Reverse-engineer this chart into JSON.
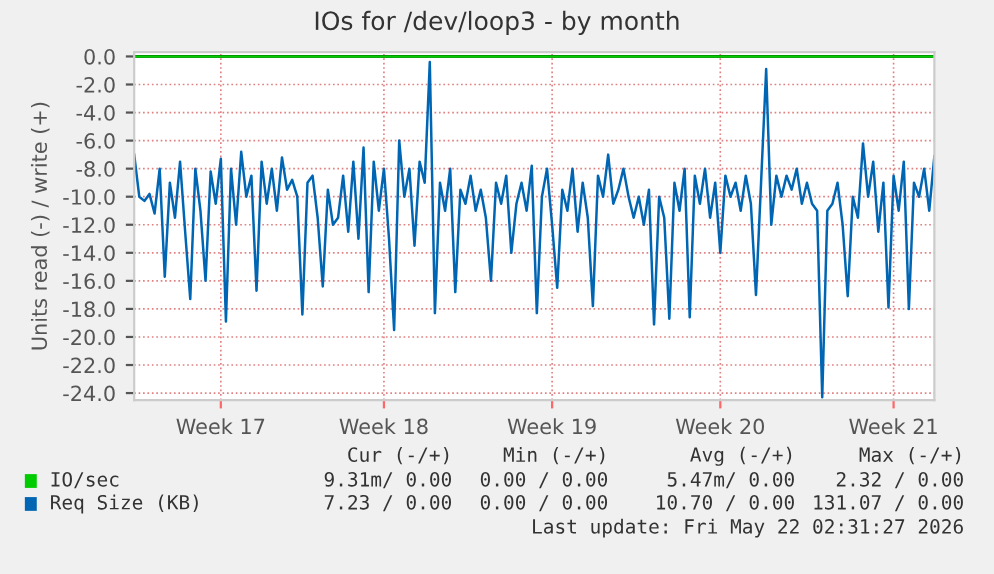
{
  "chart_data": {
    "type": "line",
    "title": "IOs for /dev/loop3 - by month",
    "ylabel": "Units read (-) / write (+)",
    "categories": [
      null,
      null,
      null,
      null,
      null,
      null,
      null,
      null,
      null,
      null,
      null,
      null,
      null,
      null,
      null,
      null,
      null,
      "Week 17",
      null,
      null,
      null,
      null,
      null,
      null,
      null,
      null,
      null,
      null,
      null,
      null,
      null,
      null,
      null,
      null,
      null,
      null,
      null,
      null,
      null,
      null,
      null,
      null,
      null,
      null,
      null,
      null,
      null,
      null,
      null,
      "Week 18",
      null,
      null,
      null,
      null,
      null,
      null,
      null,
      null,
      null,
      null,
      null,
      null,
      null,
      null,
      null,
      null,
      null,
      null,
      null,
      null,
      null,
      null,
      null,
      null,
      null,
      null,
      null,
      null,
      null,
      null,
      null,
      null,
      "Week 19",
      null,
      null,
      null,
      null,
      null,
      null,
      null,
      null,
      null,
      null,
      null,
      null,
      null,
      null,
      null,
      null,
      null,
      null,
      null,
      null,
      null,
      null,
      null,
      null,
      null,
      null,
      null,
      null,
      null,
      null,
      null,
      null,
      "Week 20",
      null,
      null,
      null,
      null,
      null,
      null,
      null,
      null,
      null,
      null,
      null,
      null,
      null,
      null,
      null,
      null,
      null,
      null,
      null,
      null,
      null,
      null,
      null,
      null,
      null,
      null,
      null,
      null,
      null,
      null,
      null,
      null,
      null,
      "Week 21",
      null,
      null,
      null,
      null,
      null,
      null,
      null,
      null
    ],
    "ylim": [
      -24.5,
      0.3
    ],
    "yticks": [
      {
        "value": 0,
        "label": "0.0"
      },
      {
        "value": -2,
        "label": "-2.0"
      },
      {
        "value": -4,
        "label": "-4.0"
      },
      {
        "value": -6,
        "label": "-6.0"
      },
      {
        "value": -8,
        "label": "-8.0"
      },
      {
        "value": -10,
        "label": "-10.0"
      },
      {
        "value": -12,
        "label": "-12.0"
      },
      {
        "value": -14,
        "label": "-14.0"
      },
      {
        "value": -16,
        "label": "-16.0"
      },
      {
        "value": -18,
        "label": "-18.0"
      },
      {
        "value": -20,
        "label": "-20.0"
      },
      {
        "value": -22,
        "label": "-22.0"
      },
      {
        "value": -24,
        "label": "-24.0"
      }
    ],
    "grid": true,
    "legend": "bottom left",
    "marker": "none",
    "line_style": "solid",
    "ref_lines": [
      {
        "axis": "y",
        "value": 0,
        "color": "#000000"
      }
    ],
    "series": [
      {
        "name": "IO/sec",
        "color": "#00cc00",
        "values": [
          0,
          0,
          0,
          0,
          0,
          0,
          0,
          0,
          0,
          0,
          0,
          0,
          0,
          0,
          0,
          0,
          0,
          0,
          0,
          0,
          0,
          0,
          0,
          0,
          0,
          0,
          0,
          0,
          0,
          0,
          0,
          0,
          0,
          0,
          0,
          0,
          0,
          0,
          0,
          0,
          0,
          0,
          0,
          0,
          0,
          0,
          0,
          0,
          0,
          0,
          0,
          0,
          0,
          0,
          0,
          0,
          0,
          0,
          0,
          0,
          0,
          0,
          0,
          0,
          0,
          0,
          0,
          0,
          0,
          0,
          0,
          0,
          0,
          0,
          0,
          0,
          0,
          0,
          0,
          0,
          0,
          0,
          0,
          0,
          0,
          0,
          0,
          0,
          0,
          0,
          0,
          0,
          0,
          0,
          0,
          0,
          0,
          0,
          0,
          0,
          0,
          0,
          0,
          0,
          0,
          0,
          0,
          0,
          0,
          0,
          0,
          0,
          0,
          0,
          0,
          0,
          0,
          0,
          0,
          0,
          0,
          0,
          0,
          0,
          0,
          0,
          0,
          0,
          0,
          0,
          0,
          0,
          0,
          0,
          0,
          0,
          0,
          0,
          0,
          0,
          0,
          0,
          0,
          0,
          0,
          0,
          0,
          0,
          0,
          0,
          0,
          0,
          0,
          0,
          0,
          0,
          0,
          0
        ]
      },
      {
        "name": "Req Size (KB)",
        "color": "#0066b3",
        "values": [
          -7.0,
          -10.0,
          -10.3,
          -9.8,
          -11.2,
          -8.0,
          -15.7,
          -9.0,
          -11.5,
          -7.5,
          -12.5,
          -17.3,
          -8.0,
          -11.0,
          -16.0,
          -8.2,
          -10.5,
          -7.3,
          -18.9,
          -8.0,
          -12.0,
          -6.8,
          -10.0,
          -8.5,
          -16.7,
          -7.5,
          -10.5,
          -8.0,
          -11.0,
          -7.2,
          -9.5,
          -8.8,
          -10.0,
          -18.4,
          -9.0,
          -8.5,
          -11.5,
          -16.4,
          -9.5,
          -12.0,
          -11.5,
          -8.5,
          -12.5,
          -7.5,
          -13.0,
          -6.5,
          -16.8,
          -7.5,
          -11.0,
          -8.0,
          -13.0,
          -19.5,
          -6.0,
          -10.0,
          -8.0,
          -13.5,
          -7.5,
          -9.0,
          -0.4,
          -18.3,
          -9.0,
          -11.0,
          -8.0,
          -16.8,
          -9.5,
          -10.5,
          -8.5,
          -11.0,
          -9.5,
          -11.5,
          -16.0,
          -9.0,
          -10.5,
          -8.5,
          -14.0,
          -10.5,
          -9.0,
          -11.0,
          -7.8,
          -18.3,
          -10.0,
          -8.0,
          -12.0,
          -16.5,
          -9.5,
          -11.0,
          -8.0,
          -12.5,
          -9.0,
          -11.5,
          -17.8,
          -8.5,
          -10.0,
          -7.0,
          -10.5,
          -9.5,
          -8.0,
          -10.0,
          -11.5,
          -10.0,
          -12.0,
          -9.5,
          -19.1,
          -10.0,
          -11.5,
          -18.7,
          -9.0,
          -11.0,
          -8.0,
          -18.6,
          -8.5,
          -10.5,
          -8.0,
          -11.5,
          -9.0,
          -14.0,
          -8.5,
          -10.0,
          -9.0,
          -11.0,
          -8.5,
          -10.5,
          -17.0,
          -9.0,
          -0.9,
          -12.0,
          -8.5,
          -10.0,
          -8.5,
          -9.5,
          -8.0,
          -10.5,
          -9.0,
          -10.5,
          -11.0,
          -24.3,
          -11.0,
          -10.5,
          -9.0,
          -12.0,
          -17.1,
          -10.0,
          -11.5,
          -6.2,
          -10.0,
          -7.5,
          -12.5,
          -9.0,
          -17.9,
          -8.5,
          -11.0,
          -7.5,
          -18.0,
          -9.0,
          -10.0,
          -8.0,
          -11.0,
          -7.1
        ]
      }
    ],
    "annotations": [
      "Cur (-/+)",
      "Min (-/+)",
      "Avg (-/+)",
      "Max (-/+)",
      "9.31m/ 0.00",
      "0.00 / 0.00",
      "5.47m/ 0.00",
      "2.32 / 0.00",
      "7.23 / 0.00",
      "0.00 / 0.00",
      "10.70 / 0.00",
      "131.07 / 0.00",
      "Last update: Fri May 22 02:31:27 2026"
    ]
  }
}
